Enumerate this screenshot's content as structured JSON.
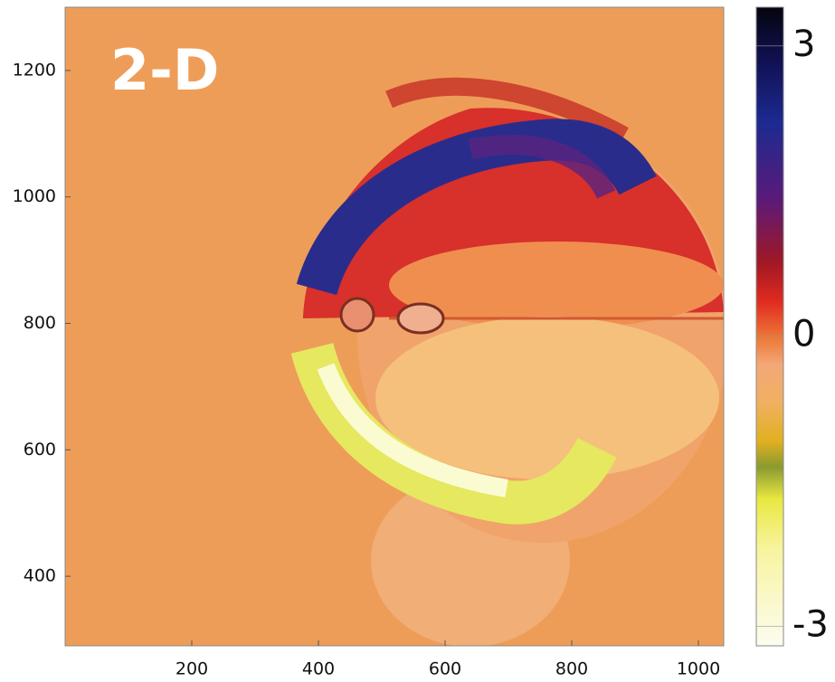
{
  "chart_data": {
    "type": "image",
    "title": "2-D",
    "xlim": [
      0,
      1040
    ],
    "xticks": [
      200,
      400,
      600,
      800,
      1000
    ],
    "ylim": [
      290,
      1300
    ],
    "yticks": [
      400,
      600,
      800,
      1000,
      1200
    ],
    "colorbar": {
      "clim": [
        -3.2,
        3.4
      ],
      "ticks": [
        3,
        0,
        -3
      ]
    }
  }
}
